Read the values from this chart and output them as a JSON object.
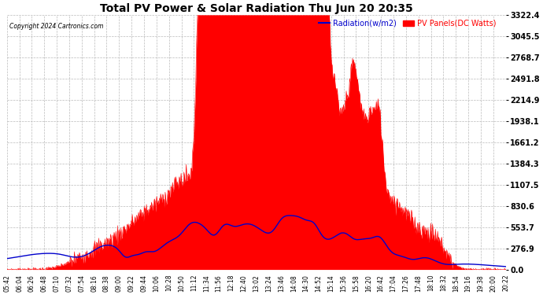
{
  "title": "Total PV Power & Solar Radiation Thu Jun 20 20:35",
  "copyright": "Copyright 2024 Cartronics.com",
  "legend_radiation": "Radiation(w/m2)",
  "legend_pv": "PV Panels(DC Watts)",
  "ylabel_right_ticks": [
    0.0,
    276.9,
    553.7,
    830.6,
    1107.5,
    1384.3,
    1661.2,
    1938.1,
    2214.9,
    2491.8,
    2768.7,
    3045.5,
    3322.4
  ],
  "ymax": 3322.4,
  "ymin": 0.0,
  "bg_color": "#ffffff",
  "grid_color": "#bbbbbb",
  "pv_fill_color": "#ff0000",
  "radiation_line_color": "#0000cc",
  "title_color": "#000000",
  "copyright_color": "#000000",
  "x_tick_labels": [
    "05:42",
    "06:04",
    "06:26",
    "06:48",
    "07:10",
    "07:32",
    "07:54",
    "08:16",
    "08:38",
    "09:00",
    "09:22",
    "09:44",
    "10:06",
    "10:28",
    "10:50",
    "11:12",
    "11:34",
    "11:56",
    "12:18",
    "12:40",
    "13:02",
    "13:24",
    "13:46",
    "14:08",
    "14:30",
    "14:52",
    "15:14",
    "15:36",
    "15:58",
    "16:20",
    "16:42",
    "17:04",
    "17:26",
    "17:48",
    "18:10",
    "18:32",
    "18:54",
    "19:16",
    "19:38",
    "20:00",
    "20:22"
  ]
}
